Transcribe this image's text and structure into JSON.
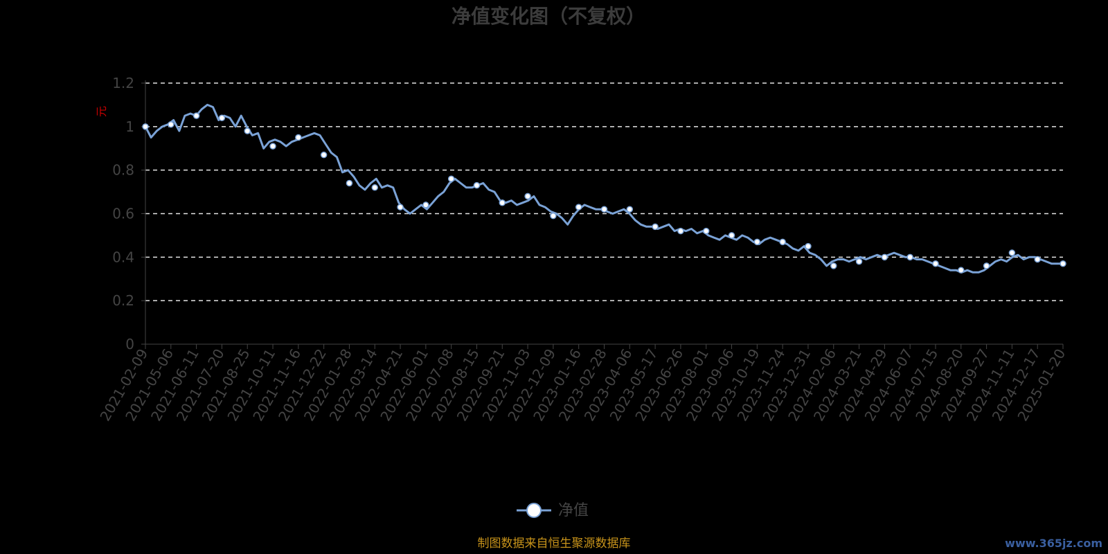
{
  "chart_data": {
    "type": "line",
    "title": "净值变化图（不复权）",
    "ylabel": "元",
    "ylim": [
      0,
      1.2
    ],
    "y_ticks": [
      "0",
      "0.2",
      "0.4",
      "0.6",
      "0.8",
      "1",
      "1.2"
    ],
    "grid": true,
    "legend_position": "bottom-center",
    "x_ticks": [
      "2021-02-09",
      "2021-05-06",
      "2021-06-11",
      "2021-07-20",
      "2021-08-25",
      "2021-10-11",
      "2021-11-16",
      "2021-12-22",
      "2022-01-28",
      "2022-03-14",
      "2022-04-21",
      "2022-06-01",
      "2022-07-08",
      "2022-08-15",
      "2022-09-21",
      "2022-11-03",
      "2022-12-09",
      "2023-01-16",
      "2023-02-28",
      "2023-04-06",
      "2023-05-17",
      "2023-06-26",
      "2023-08-01",
      "2023-09-06",
      "2023-10-19",
      "2023-11-24",
      "2023-12-31",
      "2024-02-06",
      "2024-03-21",
      "2024-04-29",
      "2024-06-07",
      "2024-07-15",
      "2024-08-20",
      "2024-09-27",
      "2024-11-11",
      "2024-12-17",
      "2025-01-20"
    ],
    "series": [
      {
        "name": "净值",
        "color": "#7aa2d6",
        "marker_color": "#ffffff",
        "values": [
          1.0,
          0.95,
          0.98,
          1.0,
          1.01,
          1.03,
          0.98,
          1.05,
          1.06,
          1.05,
          1.08,
          1.1,
          1.09,
          1.03,
          1.05,
          1.04,
          1.0,
          1.05,
          1.0,
          0.96,
          0.97,
          0.9,
          0.93,
          0.94,
          0.93,
          0.91,
          0.93,
          0.94,
          0.95,
          0.96,
          0.97,
          0.96,
          0.92,
          0.88,
          0.86,
          0.79,
          0.8,
          0.77,
          0.73,
          0.71,
          0.74,
          0.76,
          0.72,
          0.73,
          0.72,
          0.65,
          0.62,
          0.6,
          0.62,
          0.64,
          0.62,
          0.65,
          0.68,
          0.7,
          0.74,
          0.76,
          0.74,
          0.72,
          0.72,
          0.73,
          0.74,
          0.71,
          0.7,
          0.66,
          0.65,
          0.66,
          0.64,
          0.65,
          0.66,
          0.68,
          0.64,
          0.63,
          0.61,
          0.6,
          0.58,
          0.55,
          0.59,
          0.62,
          0.64,
          0.63,
          0.62,
          0.62,
          0.61,
          0.6,
          0.61,
          0.62,
          0.6,
          0.57,
          0.55,
          0.54,
          0.54,
          0.53,
          0.54,
          0.55,
          0.52,
          0.53,
          0.52,
          0.53,
          0.51,
          0.52,
          0.5,
          0.49,
          0.48,
          0.5,
          0.49,
          0.48,
          0.5,
          0.49,
          0.47,
          0.46,
          0.48,
          0.49,
          0.48,
          0.47,
          0.46,
          0.44,
          0.43,
          0.45,
          0.42,
          0.41,
          0.39,
          0.36,
          0.38,
          0.39,
          0.39,
          0.38,
          0.39,
          0.4,
          0.39,
          0.4,
          0.41,
          0.4,
          0.41,
          0.42,
          0.41,
          0.4,
          0.4,
          0.39,
          0.39,
          0.38,
          0.37,
          0.36,
          0.35,
          0.34,
          0.34,
          0.33,
          0.34,
          0.33,
          0.33,
          0.34,
          0.36,
          0.38,
          0.39,
          0.38,
          0.4,
          0.41,
          0.39,
          0.4,
          0.4,
          0.39,
          0.38,
          0.37,
          0.37,
          0.37
        ]
      }
    ],
    "marker_values": [
      1.0,
      1.01,
      1.05,
      1.04,
      0.98,
      0.91,
      0.95,
      0.87,
      0.74,
      0.72,
      0.63,
      0.64,
      0.76,
      0.73,
      0.65,
      0.68,
      0.59,
      0.63,
      0.62,
      0.62,
      0.54,
      0.52,
      0.52,
      0.5,
      0.47,
      0.47,
      0.45,
      0.36,
      0.38,
      0.4,
      0.4,
      0.37,
      0.34,
      0.36,
      0.42,
      0.39,
      0.37
    ]
  },
  "legend": {
    "label": "净值"
  },
  "source_note": "制图数据来自恒生聚源数据库",
  "watermark": "www.365jz.com"
}
